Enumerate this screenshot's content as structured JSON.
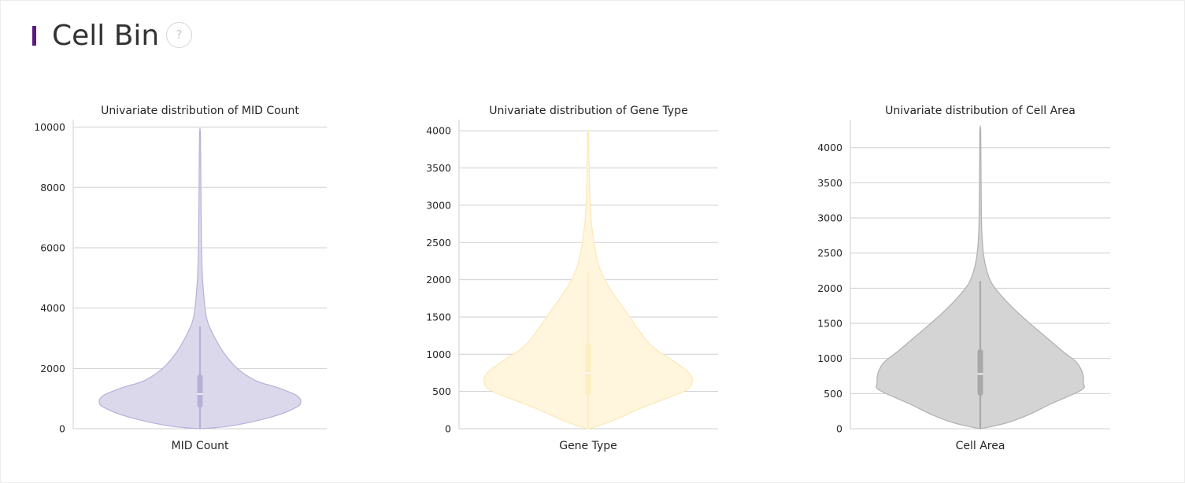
{
  "header": {
    "title": "Cell Bin",
    "help_label": "?",
    "accent_color": "#5b1a7e"
  },
  "chart_data": [
    {
      "type": "violin",
      "title": "Univariate distribution of MID Count",
      "xlabel": "MID Count",
      "ylabel": "",
      "ylim": [
        0,
        10250
      ],
      "yticks": [
        0,
        2000,
        4000,
        6000,
        8000,
        10000
      ],
      "grid": true,
      "color": "#dcd8ec",
      "edge_color": "#b8b0d8",
      "box_color": "#b7b0d6",
      "summary": {
        "min": 0,
        "q1": 700,
        "median": 1150,
        "q3": 1800,
        "whisker_low": 0,
        "whisker_high": 3400,
        "max": 9700
      },
      "density_profile": [
        [
          0,
          0.0
        ],
        [
          100,
          0.32
        ],
        [
          400,
          0.72
        ],
        [
          700,
          0.95
        ],
        [
          880,
          1.0
        ],
        [
          1100,
          0.96
        ],
        [
          1350,
          0.78
        ],
        [
          1600,
          0.55
        ],
        [
          2000,
          0.37
        ],
        [
          2500,
          0.24
        ],
        [
          3000,
          0.15
        ],
        [
          3500,
          0.08
        ],
        [
          4000,
          0.05
        ],
        [
          5000,
          0.025
        ],
        [
          6000,
          0.015
        ],
        [
          7500,
          0.01
        ],
        [
          9700,
          0.004
        ]
      ]
    },
    {
      "type": "violin",
      "title": "Univariate distribution of Gene Type",
      "xlabel": "Gene Type",
      "ylabel": "",
      "ylim": [
        0,
        4150
      ],
      "yticks": [
        0,
        500,
        1000,
        1500,
        2000,
        2500,
        3000,
        3500,
        4000
      ],
      "grid": true,
      "color": "#fff6dd",
      "edge_color": "#fbe8b6",
      "box_color": "#fcedc2",
      "summary": {
        "min": 0,
        "q1": 450,
        "median": 750,
        "q3": 1150,
        "whisker_low": 0,
        "whisker_high": 2100,
        "max": 3950
      },
      "density_profile": [
        [
          0,
          0.0
        ],
        [
          100,
          0.22
        ],
        [
          300,
          0.55
        ],
        [
          500,
          0.92
        ],
        [
          620,
          1.0
        ],
        [
          750,
          0.97
        ],
        [
          900,
          0.83
        ],
        [
          1100,
          0.62
        ],
        [
          1300,
          0.5
        ],
        [
          1600,
          0.35
        ],
        [
          1900,
          0.2
        ],
        [
          2200,
          0.1
        ],
        [
          2600,
          0.045
        ],
        [
          3000,
          0.02
        ],
        [
          3500,
          0.01
        ],
        [
          3950,
          0.004
        ]
      ]
    },
    {
      "type": "violin",
      "title": "Univariate distribution of Cell Area",
      "xlabel": "Cell Area",
      "ylabel": "",
      "ylim": [
        0,
        4400
      ],
      "yticks": [
        0,
        500,
        1000,
        1500,
        2000,
        2500,
        3000,
        3500,
        4000
      ],
      "grid": true,
      "color": "#d4d4d4",
      "edge_color": "#b0b0b0",
      "box_color": "#a8a8a8",
      "summary": {
        "min": 0,
        "q1": 470,
        "median": 780,
        "q3": 1130,
        "whisker_low": 0,
        "whisker_high": 2100,
        "max": 4220
      },
      "density_profile": [
        [
          0,
          0.0
        ],
        [
          80,
          0.25
        ],
        [
          200,
          0.47
        ],
        [
          350,
          0.68
        ],
        [
          550,
          0.98
        ],
        [
          650,
          1.0
        ],
        [
          800,
          0.99
        ],
        [
          950,
          0.93
        ],
        [
          1100,
          0.8
        ],
        [
          1300,
          0.64
        ],
        [
          1500,
          0.48
        ],
        [
          1700,
          0.33
        ],
        [
          1900,
          0.2
        ],
        [
          2100,
          0.1
        ],
        [
          2400,
          0.04
        ],
        [
          2800,
          0.015
        ],
        [
          3500,
          0.008
        ],
        [
          4220,
          0.004
        ]
      ]
    }
  ]
}
